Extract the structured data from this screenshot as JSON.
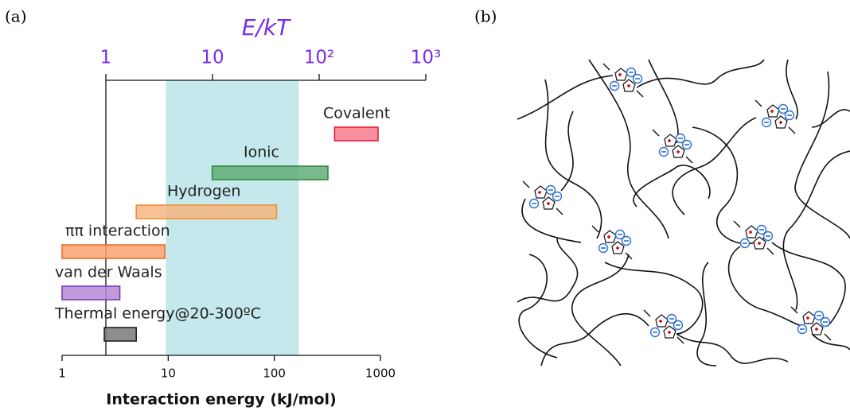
{
  "labels": {
    "panel_a": "(a)",
    "panel_b": "(b)"
  },
  "chart_data": {
    "type": "range_bar",
    "x2label": "E/kT",
    "xlabel": "Interaction energy (kJ/mol)",
    "xscale": "log",
    "xlim": [
      1,
      1000
    ],
    "xticks": [
      1,
      10,
      100,
      1000
    ],
    "x2lim": [
      1,
      1000
    ],
    "x2ticks": [
      1,
      10,
      {
        "value": 100,
        "label": "10²"
      },
      {
        "value": 1000,
        "label": "10³"
      }
    ],
    "x2color": "#7a2ee6",
    "shaded_range": [
      9.5,
      170
    ],
    "shaded_color": "#c4e8ec",
    "series": [
      {
        "name": "Covalent",
        "color": "#f57d8c",
        "edge_color": "#e3203a",
        "values": [
          370,
          950
        ]
      },
      {
        "name": "Ionic",
        "color": "#62ad78",
        "edge_color": "#2e8b3e",
        "values": [
          26,
          320
        ]
      },
      {
        "name": "Hydrogen",
        "color": "#f7b680",
        "edge_color": "#f0913a",
        "values": [
          5,
          105
        ]
      },
      {
        "name": "ππ interaction",
        "color": "#f9a272",
        "edge_color": "#f06a20",
        "values": [
          1,
          9.3
        ]
      },
      {
        "name": "van der Waals",
        "color": "#b48ad6",
        "edge_color": "#7b3fb3",
        "values": [
          1,
          3.5
        ]
      },
      {
        "name": "Thermal energy@20-300ºC",
        "color": "#7a7a7a",
        "edge_color": "#222222",
        "values": [
          2.5,
          5
        ]
      }
    ]
  }
}
